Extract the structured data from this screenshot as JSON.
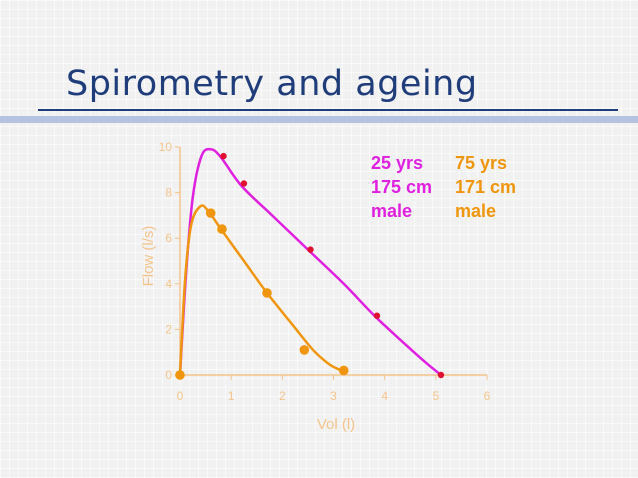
{
  "slide": {
    "title": "Spirometry and ageing"
  },
  "colors": {
    "title": "#1f3d7a",
    "axis": "#f3c48b",
    "young": "#e020e0",
    "young_marker": "#e01030",
    "old": "#f0960e"
  },
  "chart_data": {
    "type": "line",
    "xlabel": "Vol (l)",
    "ylabel": "Flow (l/s)",
    "xlim": [
      0,
      6
    ],
    "ylim": [
      0,
      10
    ],
    "x_ticks": [
      "0",
      "1",
      "2",
      "3",
      "4",
      "5",
      "6"
    ],
    "y_ticks": [
      "0",
      "2",
      "4",
      "6",
      "8",
      "10"
    ],
    "grid": false,
    "series": [
      {
        "name": "25 yrs",
        "details": [
          "25 yrs",
          "175 cm",
          "male"
        ],
        "color": "#e020e0",
        "marker_color": "#e01030",
        "curve": [
          [
            0,
            0
          ],
          [
            0.12,
            4.5
          ],
          [
            0.25,
            7.8
          ],
          [
            0.42,
            9.6
          ],
          [
            0.6,
            9.9
          ],
          [
            0.8,
            9.55
          ],
          [
            1.2,
            8.3
          ],
          [
            1.8,
            7.0
          ],
          [
            2.5,
            5.5
          ],
          [
            3.2,
            4.0
          ],
          [
            3.8,
            2.6
          ],
          [
            4.4,
            1.35
          ],
          [
            4.8,
            0.55
          ],
          [
            5.1,
            0
          ]
        ],
        "points": [
          [
            0,
            0
          ],
          [
            0.85,
            9.6
          ],
          [
            1.25,
            8.4
          ],
          [
            2.55,
            5.5
          ],
          [
            3.85,
            2.6
          ],
          [
            5.1,
            0
          ]
        ]
      },
      {
        "name": "75 yrs",
        "details": [
          "75 yrs",
          "171 cm",
          "male"
        ],
        "color": "#f0960e",
        "marker_color": "#f0960e",
        "curve": [
          [
            0,
            0
          ],
          [
            0.1,
            4.2
          ],
          [
            0.22,
            6.6
          ],
          [
            0.4,
            7.4
          ],
          [
            0.55,
            7.2
          ],
          [
            0.8,
            6.4
          ],
          [
            1.25,
            5.0
          ],
          [
            1.7,
            3.6
          ],
          [
            2.2,
            2.2
          ],
          [
            2.6,
            1.1
          ],
          [
            2.9,
            0.5
          ],
          [
            3.1,
            0.25
          ],
          [
            3.2,
            0.2
          ]
        ],
        "points": [
          [
            0,
            0
          ],
          [
            0.6,
            7.1
          ],
          [
            0.82,
            6.4
          ],
          [
            1.7,
            3.6
          ],
          [
            2.43,
            1.1
          ],
          [
            3.2,
            0.2
          ]
        ]
      }
    ]
  }
}
